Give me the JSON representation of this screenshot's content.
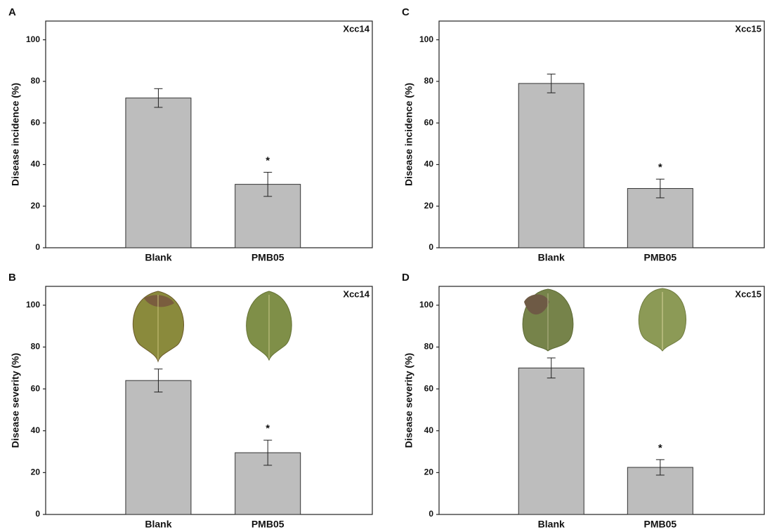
{
  "chart_data": [
    {
      "type": "bar",
      "panel_label": "A",
      "annotation": "Xcc14",
      "ylabel": "Disease incidence (%)",
      "categories": [
        "Blank",
        "PMB05"
      ],
      "values": [
        72,
        30.5
      ],
      "errors": [
        4.5,
        5.8
      ],
      "significance": [
        null,
        "*"
      ],
      "color": "#bdbdbd",
      "ylim": [
        0,
        109
      ],
      "yticks": [
        0,
        20,
        40,
        60,
        80,
        100
      ]
    },
    {
      "type": "bar",
      "panel_label": "B",
      "annotation": "Xcc14",
      "ylabel": "Disease severity (%)",
      "categories": [
        "Blank",
        "PMB05"
      ],
      "values": [
        64,
        29.5
      ],
      "errors": [
        5.5,
        6
      ],
      "significance": [
        null,
        "*"
      ],
      "color": "#bdbdbd",
      "ylim": [
        0,
        109
      ],
      "yticks": [
        0,
        20,
        40,
        60,
        80,
        100
      ]
    },
    {
      "type": "bar",
      "panel_label": "C",
      "annotation": "Xcc15",
      "ylabel": "Disease incidence (%)",
      "categories": [
        "Blank",
        "PMB05"
      ],
      "values": [
        79,
        28.5
      ],
      "errors": [
        4.5,
        4.5
      ],
      "significance": [
        null,
        "*"
      ],
      "color": "#bdbdbd",
      "ylim": [
        0,
        109
      ],
      "yticks": [
        0,
        20,
        40,
        60,
        80,
        100
      ]
    },
    {
      "type": "bar",
      "panel_label": "D",
      "annotation": "Xcc15",
      "ylabel": "Disease severity (%)",
      "categories": [
        "Blank",
        "PMB05"
      ],
      "values": [
        70,
        22.5
      ],
      "errors": [
        4.8,
        3.7
      ],
      "significance": [
        null,
        "*"
      ],
      "color": "#bdbdbd",
      "ylim": [
        0,
        109
      ],
      "yticks": [
        0,
        20,
        40,
        60,
        80,
        100
      ]
    }
  ]
}
